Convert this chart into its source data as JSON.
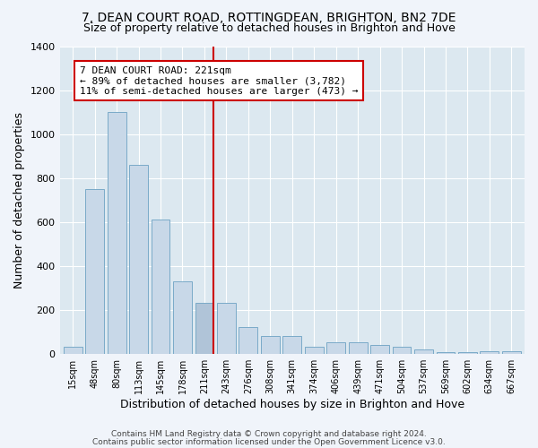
{
  "title": "7, DEAN COURT ROAD, ROTTINGDEAN, BRIGHTON, BN2 7DE",
  "subtitle": "Size of property relative to detached houses in Brighton and Hove",
  "xlabel": "Distribution of detached houses by size in Brighton and Hove",
  "ylabel": "Number of detached properties",
  "footer1": "Contains HM Land Registry data © Crown copyright and database right 2024.",
  "footer2": "Contains public sector information licensed under the Open Government Licence v3.0.",
  "bar_labels": [
    "15sqm",
    "48sqm",
    "80sqm",
    "113sqm",
    "145sqm",
    "178sqm",
    "211sqm",
    "243sqm",
    "276sqm",
    "308sqm",
    "341sqm",
    "374sqm",
    "406sqm",
    "439sqm",
    "471sqm",
    "504sqm",
    "537sqm",
    "569sqm",
    "602sqm",
    "634sqm",
    "667sqm"
  ],
  "bar_values": [
    30,
    750,
    1100,
    860,
    610,
    330,
    230,
    230,
    120,
    80,
    80,
    30,
    50,
    50,
    40,
    30,
    20,
    5,
    5,
    10,
    10
  ],
  "bar_color": "#c8d8e8",
  "bar_edge_color": "#7aaac8",
  "highlight_bar_index": 6,
  "highlight_bar_color": "#b0c4d8",
  "vline_color": "#cc0000",
  "annotation_text": "7 DEAN COURT ROAD: 221sqm\n← 89% of detached houses are smaller (3,782)\n11% of semi-detached houses are larger (473) →",
  "annotation_box_color": "#ffffff",
  "annotation_box_edge": "#cc0000",
  "ylim": [
    0,
    1400
  ],
  "yticks": [
    0,
    200,
    400,
    600,
    800,
    1000,
    1200,
    1400
  ],
  "fig_bg_color": "#f0f4fa",
  "plot_bg": "#dce8f0",
  "title_fontsize": 10,
  "subtitle_fontsize": 9,
  "annotation_fontsize": 8
}
